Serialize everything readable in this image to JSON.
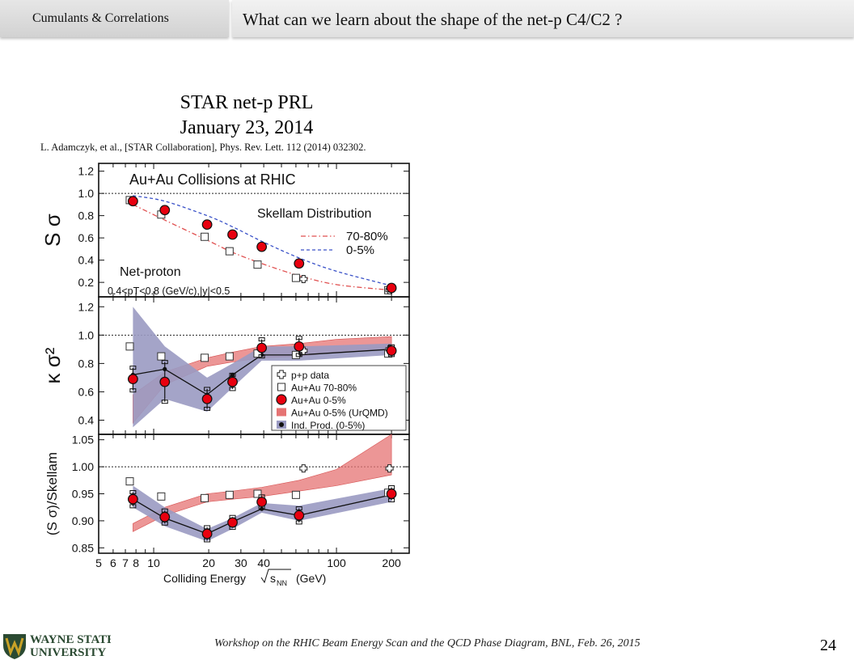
{
  "header": {
    "section": "Cumulants & Correlations",
    "title": "What can we learn about the shape of the net-p C4/C2 ?"
  },
  "figure_title": {
    "line1": "STAR net-p PRL",
    "line2": "January 23, 2014"
  },
  "citation": "L. Adamczyk, et al., [STAR Collaboration], Phys. Rev. Lett. 112 (2014) 032302.",
  "footer": {
    "text": "Workshop on the RHIC Beam Energy Scan and the QCD Phase Diagram, BNL, Feb. 26, 2015",
    "slide_number": "24",
    "logo_line1": "WAYNE STATE",
    "logo_line2": "UNIVERSITY"
  },
  "colors": {
    "accent_red": "#e8000f",
    "model_red": "#e57373",
    "band_purple": "#9a9ac2",
    "logo_green": "#2b4a32",
    "logo_gold": "#c9a227"
  },
  "chart_data": {
    "type": "scatter",
    "x_scale": "log",
    "xlim": [
      5,
      250
    ],
    "x_ticks": [
      "5",
      "6",
      "7",
      "8",
      "10",
      "20",
      "30",
      "40",
      "100",
      "200"
    ],
    "xlabel_prefix": "Colliding Energy",
    "xlabel_suffix": "(GeV)",
    "panels": [
      {
        "name": "Sσ",
        "ylabel": "S σ",
        "ylim": [
          0.07,
          1.27
        ],
        "y_ticks": [
          0.2,
          0.4,
          0.6,
          0.8,
          1.0,
          1.2
        ],
        "y_tick_labels": [
          "0.2",
          "0.4",
          "0.6",
          "0.8",
          "1.0",
          "1.2"
        ],
        "reference_line": 1.0,
        "header_text": "Au+Au Collisions at RHIC",
        "annotation_main": "Net-proton",
        "annotation_cut": "0.4<pT<0.8 (GeV/c),|y|<0.5",
        "legend_title": "Skellam Distribution",
        "skellam_70_80": {
          "name": "70-80%",
          "x": [
            7.7,
            11.5,
            19.6,
            27,
            39,
            62.4,
            100,
            200
          ],
          "y": [
            0.9,
            0.76,
            0.58,
            0.47,
            0.37,
            0.26,
            0.18,
            0.13
          ]
        },
        "skellam_0_5": {
          "name": "0-5%",
          "x": [
            7.7,
            11.5,
            19.6,
            27,
            39,
            62.4,
            100,
            200
          ],
          "y": [
            0.98,
            0.93,
            0.8,
            0.7,
            0.57,
            0.42,
            0.3,
            0.17
          ]
        },
        "au_0_5": {
          "x": [
            7.7,
            11.5,
            19.6,
            27,
            39,
            62.4,
            200
          ],
          "y": [
            0.93,
            0.85,
            0.72,
            0.63,
            0.52,
            0.37,
            0.15
          ]
        },
        "au_70_80": {
          "x": [
            7.4,
            11,
            19,
            26,
            37,
            60,
            192
          ],
          "y": [
            0.94,
            0.81,
            0.61,
            0.48,
            0.36,
            0.24,
            0.13
          ]
        },
        "pp": {
          "x": [
            66,
            195
          ],
          "y": [
            0.23,
            0.13
          ]
        }
      },
      {
        "name": "κσ²",
        "ylabel": "κ σ²",
        "ylim": [
          0.3,
          1.27
        ],
        "y_ticks": [
          0.4,
          0.6,
          0.8,
          1.0,
          1.2
        ],
        "y_tick_labels": [
          "0.4",
          "0.6",
          "0.8",
          "1.0",
          "1.2"
        ],
        "reference_line": 1.0,
        "legend": [
          "p+p data",
          "Au+Au 70-80%",
          "Au+Au 0-5%",
          "Au+Au 0-5% (UrQMD)",
          "Ind. Prod. (0-5%)"
        ],
        "au_0_5": {
          "x": [
            7.7,
            11.5,
            19.6,
            27,
            39,
            62.4,
            200
          ],
          "y": [
            0.69,
            0.67,
            0.55,
            0.67,
            0.91,
            0.92,
            0.89
          ],
          "err": [
            0.08,
            0.14,
            0.07,
            0.05,
            0.06,
            0.06,
            0.03
          ]
        },
        "au_70_80": {
          "x": [
            7.4,
            11,
            19,
            26,
            37,
            60,
            192
          ],
          "y": [
            0.92,
            0.85,
            0.84,
            0.85,
            0.87,
            0.86,
            0.87
          ]
        },
        "pp": {
          "x": [
            66,
            195
          ],
          "y": [
            0.89,
            0.9
          ]
        },
        "ind_prod": {
          "x": [
            7.7,
            11.5,
            19.6,
            27,
            39,
            62.4,
            200
          ],
          "y": [
            0.72,
            0.76,
            0.58,
            0.72,
            0.86,
            0.86,
            0.9
          ]
        },
        "ind_band": {
          "low": [
            0.35,
            0.55,
            0.46,
            0.63,
            0.82,
            0.82,
            0.86
          ],
          "high": [
            1.2,
            0.92,
            0.7,
            0.8,
            0.92,
            0.92,
            0.94
          ]
        },
        "urqmd": {
          "x": [
            7.7,
            11.5,
            19.6,
            27,
            39,
            62.4,
            100,
            200
          ],
          "low": [
            0.38,
            0.65,
            0.78,
            0.81,
            0.84,
            0.85,
            0.88,
            0.9
          ],
          "high": [
            0.58,
            0.74,
            0.84,
            0.88,
            0.92,
            0.94,
            0.97,
            0.99
          ]
        }
      },
      {
        "name": "ratio",
        "ylabel": "(S σ)/Skellam",
        "ylim": [
          0.84,
          1.06
        ],
        "y_ticks": [
          0.85,
          0.9,
          0.95,
          1.0,
          1.05
        ],
        "y_tick_labels": [
          "0.85",
          "0.90",
          "0.95",
          "1.00",
          "1.05"
        ],
        "reference_line": 1.0,
        "au_0_5": {
          "x": [
            7.7,
            11.5,
            19.6,
            27,
            39,
            62.4,
            200
          ],
          "y": [
            0.94,
            0.907,
            0.876,
            0.897,
            0.935,
            0.91,
            0.95
          ],
          "err": [
            0.013,
            0.012,
            0.012,
            0.01,
            0.01,
            0.013,
            0.012
          ]
        },
        "au_70_80": {
          "x": [
            7.4,
            11,
            19,
            26,
            37,
            60,
            192
          ],
          "y": [
            0.973,
            0.945,
            0.942,
            0.948,
            0.95,
            0.948,
            0.952
          ]
        },
        "pp": {
          "x": [
            66,
            195
          ],
          "y": [
            0.997,
            0.997
          ]
        },
        "ind_prod": {
          "x": [
            7.7,
            11.5,
            19.6,
            27,
            39,
            62.4,
            200
          ],
          "y": [
            0.94,
            0.905,
            0.876,
            0.898,
            0.922,
            0.91,
            0.948
          ]
        },
        "ind_band": {
          "low": [
            0.925,
            0.89,
            0.862,
            0.885,
            0.915,
            0.9,
            0.935
          ],
          "high": [
            0.965,
            0.925,
            0.885,
            0.905,
            0.933,
            0.928,
            0.96
          ]
        },
        "urqmd": {
          "x": [
            7.7,
            11.5,
            19.6,
            27,
            39,
            62.4,
            100,
            200
          ],
          "low": [
            0.88,
            0.91,
            0.935,
            0.94,
            0.945,
            0.955,
            0.965,
            0.985
          ],
          "high": [
            0.895,
            0.925,
            0.95,
            0.955,
            0.962,
            0.975,
            0.995,
            1.06
          ]
        }
      }
    ]
  }
}
